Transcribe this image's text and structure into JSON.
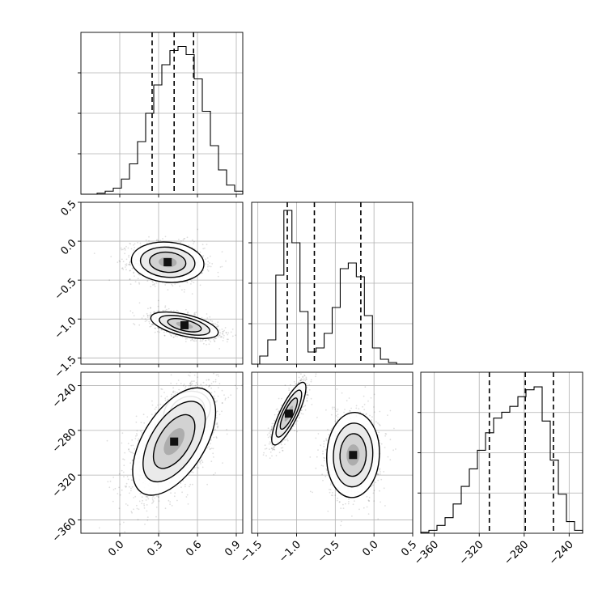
{
  "chart_data": {
    "type": "corner",
    "description": "Triangle (corner) plot of posterior samples for three parameters: 1-D histograms on the diagonal with dashed quantile lines, 2-D density (scatter + filled contours) below the diagonal.",
    "grid": true,
    "parameters": [
      {
        "index": 0,
        "name": "",
        "range": [
          -0.3,
          0.95
        ],
        "ticks": [
          0.0,
          0.3,
          0.6,
          0.9
        ],
        "tick_labels": [
          "0.0",
          "0.3",
          "0.6",
          "0.9"
        ],
        "quantiles": [
          0.25,
          0.42,
          0.57
        ]
      },
      {
        "index": 1,
        "name": "",
        "range": [
          -1.58,
          0.5
        ],
        "ticks": [
          -1.5,
          -1.0,
          -0.5,
          0.0,
          0.5
        ],
        "tick_labels": [
          "-1.5",
          "-1.0",
          "-0.5",
          "0.0",
          "0.5"
        ],
        "quantiles": [
          -1.12,
          -0.77,
          -0.17
        ]
      },
      {
        "index": 2,
        "name": "",
        "range": [
          -372,
          -228
        ],
        "ticks": [
          -360,
          -320,
          -280,
          -240
        ],
        "tick_labels": [
          "-360",
          "-320",
          "-280",
          "-240"
        ],
        "quantiles": [
          -311,
          -279,
          -254
        ]
      }
    ],
    "histograms": [
      {
        "param": 0,
        "bins": [
          -0.3,
          -0.2375,
          -0.175,
          -0.1125,
          -0.05,
          0.0125,
          0.075,
          0.1375,
          0.2,
          0.2625,
          0.325,
          0.3875,
          0.45,
          0.5125,
          0.575,
          0.6375,
          0.7,
          0.7625,
          0.825,
          0.8875,
          0.95
        ],
        "counts": [
          0,
          0,
          1,
          3,
          6,
          15,
          30,
          52,
          80,
          108,
          128,
          142,
          146,
          138,
          114,
          82,
          48,
          24,
          9,
          3
        ],
        "ylim": [
          0,
          160
        ]
      },
      {
        "param": 1,
        "bins": [
          -1.58,
          -1.476,
          -1.372,
          -1.268,
          -1.164,
          -1.06,
          -0.956,
          -0.852,
          -0.748,
          -0.644,
          -0.54,
          -0.436,
          -0.332,
          -0.228,
          -0.124,
          -0.02,
          0.084,
          0.188,
          0.292,
          0.396,
          0.5
        ],
        "counts": [
          0,
          10,
          30,
          110,
          190,
          150,
          65,
          15,
          20,
          38,
          70,
          118,
          125,
          108,
          60,
          20,
          6,
          2,
          0,
          0
        ],
        "ylim": [
          0,
          200
        ]
      },
      {
        "param": 2,
        "bins": [
          -372,
          -364.8,
          -357.6,
          -350.4,
          -343.2,
          -336,
          -328.8,
          -321.6,
          -314.4,
          -307.2,
          -300,
          -292.8,
          -285.6,
          -278.4,
          -271.2,
          -264,
          -256.8,
          -249.6,
          -242.4,
          -235.2,
          -228
        ],
        "counts": [
          1,
          3,
          8,
          16,
          30,
          48,
          66,
          85,
          103,
          118,
          124,
          130,
          140,
          147,
          150,
          115,
          75,
          40,
          12,
          3
        ],
        "ylim": [
          0,
          165
        ]
      }
    ],
    "joint": [
      {
        "x_param": 0,
        "y_param": 1,
        "modes": [
          {
            "x": 0.37,
            "y": -0.27,
            "sx": 0.14,
            "sy": 0.13,
            "rho": -0.1,
            "weight": 0.5
          },
          {
            "x": 0.5,
            "y": -1.08,
            "sx": 0.13,
            "sy": 0.085,
            "rho": -0.55,
            "weight": 0.5
          }
        ]
      },
      {
        "x_param": 0,
        "y_param": 2,
        "modes": [
          {
            "x": 0.52,
            "y": -263,
            "sx": 0.09,
            "sy": 9,
            "rho": 0.2,
            "weight": 0.3
          },
          {
            "x": 0.42,
            "y": -290,
            "sx": 0.16,
            "sy": 24,
            "rho": 0.55,
            "weight": 0.7
          }
        ]
      },
      {
        "x_param": 1,
        "y_param": 2,
        "modes": [
          {
            "x": -1.1,
            "y": -265,
            "sx": 0.11,
            "sy": 14,
            "rho": 0.82,
            "weight": 0.5
          },
          {
            "x": -0.27,
            "y": -302,
            "sx": 0.17,
            "sy": 19,
            "rho": 0.05,
            "weight": 0.5
          }
        ]
      }
    ],
    "contour_levels_sigma": [
      0.5,
      1.0,
      1.5,
      2.0
    ]
  }
}
